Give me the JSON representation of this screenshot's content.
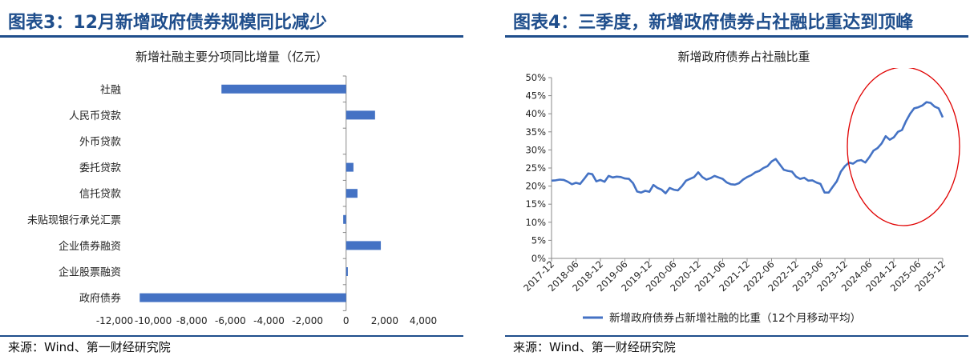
{
  "left": {
    "figure_title": "图表3：12月新增政府债券规模同比减少",
    "source": "来源：Wind、第一财经研究院",
    "colors": {
      "accent": "#1f4e8c",
      "bar": "#4472c4"
    },
    "chart_data": {
      "type": "bar",
      "orientation": "horizontal",
      "title": "新增社融主要分项同比增量（亿元）",
      "categories": [
        "社融",
        "人民币贷款",
        "外币贷款",
        "委托贷款",
        "信托贷款",
        "未贴现银行承兑汇票",
        "企业债券融资",
        "企业股票融资",
        "政府债券"
      ],
      "values": [
        -6462,
        1500,
        0,
        380,
        590,
        -150,
        1800,
        90,
        -10700
      ],
      "xlim": [
        -12000,
        4000
      ],
      "xticks": [
        -12000,
        -10000,
        -8000,
        -6000,
        -4000,
        -2000,
        0,
        2000,
        4000
      ],
      "xtick_labels": [
        "-12,000",
        "-10,000",
        "-8,000",
        "-6,000",
        "-4,000",
        "-2,000",
        "0",
        "2,000",
        "4,000"
      ],
      "grid": false
    }
  },
  "right": {
    "figure_title": "图表4：三季度，新增政府债券占社融比重达到顶峰",
    "source": "来源：Wind、第一财经研究院",
    "colors": {
      "accent": "#1f4e8c",
      "line": "#4472c4",
      "highlight": "#e00000"
    },
    "chart_data": {
      "type": "line",
      "title": "新增政府债券占社融比重",
      "yticks": [
        "0%",
        "5%",
        "10%",
        "15%",
        "20%",
        "25%",
        "30%",
        "35%",
        "40%",
        "45%",
        "50%"
      ],
      "ylim": [
        0,
        50
      ],
      "xtick_labels": [
        "2017-12",
        "2018-06",
        "2018-12",
        "2019-06",
        "2019-12",
        "2020-06",
        "2020-12",
        "2021-06",
        "2021-12",
        "2022-06",
        "2022-12",
        "2023-06",
        "2023-12",
        "2024-06",
        "2024-12",
        "2025-06",
        "2025-12"
      ],
      "legend": "新增政府债券占新增社融的比重（12个月移动平均）",
      "legend_position": "bottom",
      "highlight": "red ellipse around 2023-12 to 2025-12 segment",
      "series": [
        {
          "name": "新增政府债券占新增社融的比重（12个月移动平均）",
          "values": [
            21.5,
            21.6,
            21.8,
            21.7,
            21.2,
            20.5,
            20.9,
            20.6,
            22.0,
            23.5,
            23.3,
            21.3,
            21.7,
            21.2,
            22.8,
            22.4,
            22.6,
            22.5,
            22.1,
            22.0,
            20.8,
            18.5,
            18.2,
            18.7,
            18.4,
            20.3,
            19.5,
            19.0,
            18.0,
            19.5,
            19.0,
            18.8,
            20.0,
            21.5,
            22.0,
            22.5,
            23.8,
            22.5,
            21.8,
            22.2,
            22.8,
            22.4,
            22.0,
            21.0,
            20.5,
            20.4,
            20.8,
            21.8,
            22.5,
            23.0,
            23.8,
            24.2,
            25.0,
            25.5,
            26.8,
            27.5,
            26.0,
            24.5,
            24.2,
            24.0,
            22.6,
            22.0,
            22.3,
            21.5,
            21.6,
            21.0,
            20.6,
            18.2,
            18.2,
            19.8,
            21.3,
            24.0,
            25.5,
            26.5,
            26.2,
            27.0,
            27.2,
            26.5,
            28.0,
            29.8,
            30.5,
            31.8,
            33.8,
            32.8,
            33.5,
            35.0,
            35.5,
            38.0,
            40.0,
            41.5,
            41.8,
            42.3,
            43.2,
            43.0,
            42.0,
            41.5,
            39.0
          ]
        }
      ]
    }
  }
}
